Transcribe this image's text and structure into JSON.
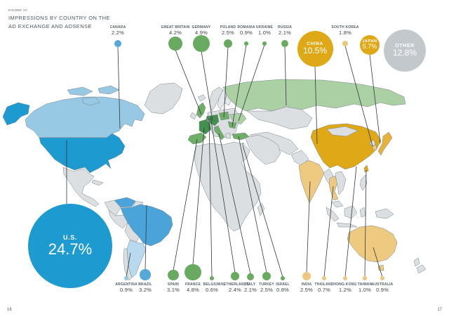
{
  "header": {
    "figure_label": "FIGURE 2C",
    "title_line1": "IMPRESSIONS BY COUNTRY ON THE",
    "title_line2": "AD EXCHANGE AND ADSENSE"
  },
  "footer": {
    "page_left": "16",
    "page_right": "17"
  },
  "colors": {
    "bubble_blue": "#55a8da",
    "bubble_blue_light": "#93c7e6",
    "bubble_green": "#68aa5f",
    "bubble_tan": "#ecc77d",
    "gold": "#dfa817",
    "gold_light": "#e6b23c",
    "us_blue": "#1d9ad0",
    "other_gray": "#c3c8cd",
    "canada_blue": "#97c8e4",
    "brazil_blue": "#4aa3d9",
    "argentina_blue": "#b9d9ee",
    "land": "#dcdfe2",
    "land_light": "#e5e8ea",
    "green_dark": "#44914f",
    "green_med": "#6fae66",
    "green_light": "#abd0a3",
    "tan": "#eeca81",
    "border": "#7b848b",
    "line": "#33383c",
    "text": "#3c4348",
    "label": "#555e66"
  },
  "bubbles": {
    "top": [
      {
        "label": "CANADA",
        "value": "2.2%",
        "group": "blue"
      },
      {
        "label": "GREAT BRITAIN",
        "value": "4.2%",
        "group": "green"
      },
      {
        "label": "GERMANY",
        "value": "4.9%",
        "group": "green"
      },
      {
        "label": "POLAND",
        "value": "2.5%",
        "group": "green"
      },
      {
        "label": "ROMANIA",
        "value": "0.9%",
        "group": "green"
      },
      {
        "label": "UKRAINE",
        "value": "1.0%",
        "group": "green"
      },
      {
        "label": "RUSSIA",
        "value": "2.1%",
        "group": "green"
      },
      {
        "label": "SOUTH KOREA",
        "value": "1.8%",
        "group": "tan"
      }
    ],
    "bottom": [
      {
        "label": "ARGENTINA",
        "value": "0.9%",
        "group": "blue_light"
      },
      {
        "label": "BRAZIL",
        "value": "3.2%",
        "group": "blue"
      },
      {
        "label": "SPAIN",
        "value": "3.1%",
        "group": "green"
      },
      {
        "label": "FRANCE",
        "value": "4.8%",
        "group": "green"
      },
      {
        "label": "BELGIUM",
        "value": "0.6%",
        "group": "green"
      },
      {
        "label": "NETHERLANDS",
        "value": "2.4%",
        "group": "green"
      },
      {
        "label": "ITALY",
        "value": "2.1%",
        "group": "green"
      },
      {
        "label": "TURKEY",
        "value": "2.5%",
        "group": "green"
      },
      {
        "label": "ISRAEL",
        "value": "0.8%",
        "group": "green"
      },
      {
        "label": "INDIA",
        "value": "2.5%",
        "group": "tan"
      },
      {
        "label": "THAILAND",
        "value": "0.7%",
        "group": "tan"
      },
      {
        "label": "HONG KONG",
        "value": "1.2%",
        "group": "tan"
      },
      {
        "label": "TAIWAN",
        "value": "1.0%",
        "group": "tan"
      },
      {
        "label": "AUSTRALIA",
        "value": "0.9%",
        "group": "tan"
      }
    ],
    "featured": [
      {
        "label": "U.S.",
        "value": "24.7%",
        "color_key": "us_blue"
      },
      {
        "label": "CHINA",
        "value": "10.5%",
        "color_key": "gold"
      },
      {
        "label": "JAPAN",
        "value": "5.7%",
        "color_key": "gold"
      },
      {
        "label": "OTHER",
        "value": "12.8%",
        "color_key": "other_gray"
      }
    ]
  },
  "chart_data": {
    "type": "bubble_map",
    "title": "IMPRESSIONS BY COUNTRY ON THE AD EXCHANGE AND ADSENSE",
    "unit": "percent of impressions",
    "points": [
      {
        "country": "U.S.",
        "value": 24.7
      },
      {
        "country": "Other",
        "value": 12.8
      },
      {
        "country": "China",
        "value": 10.5
      },
      {
        "country": "Japan",
        "value": 5.7
      },
      {
        "country": "Germany",
        "value": 4.9
      },
      {
        "country": "France",
        "value": 4.8
      },
      {
        "country": "Great Britain",
        "value": 4.2
      },
      {
        "country": "Brazil",
        "value": 3.2
      },
      {
        "country": "Spain",
        "value": 3.1
      },
      {
        "country": "Poland",
        "value": 2.5
      },
      {
        "country": "Turkey",
        "value": 2.5
      },
      {
        "country": "India",
        "value": 2.5
      },
      {
        "country": "Netherlands",
        "value": 2.4
      },
      {
        "country": "Canada",
        "value": 2.2
      },
      {
        "country": "Russia",
        "value": 2.1
      },
      {
        "country": "Italy",
        "value": 2.1
      },
      {
        "country": "South Korea",
        "value": 1.8
      },
      {
        "country": "Hong Kong",
        "value": 1.2
      },
      {
        "country": "Ukraine",
        "value": 1.0
      },
      {
        "country": "Taiwan",
        "value": 1.0
      },
      {
        "country": "Argentina",
        "value": 0.9
      },
      {
        "country": "Romania",
        "value": 0.9
      },
      {
        "country": "Australia",
        "value": 0.9
      },
      {
        "country": "Israel",
        "value": 0.8
      },
      {
        "country": "Thailand",
        "value": 0.7
      },
      {
        "country": "Belgium",
        "value": 0.6
      }
    ]
  }
}
